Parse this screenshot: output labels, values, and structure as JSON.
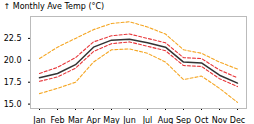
{
  "chart_data": {
    "type": "line",
    "ylabel": "Monthly Ave Temp (°C)",
    "categories": [
      "Jan",
      "Feb",
      "Mar",
      "Apr",
      "May",
      "Jun",
      "Jul",
      "Aug",
      "Sep",
      "Oct",
      "Nov",
      "Dec"
    ],
    "series": [
      {
        "color": "#f5a623",
        "line_style": "dashed",
        "values": [
          16.2,
          16.8,
          17.5,
          19.8,
          21.2,
          21.3,
          20.8,
          19.8,
          17.8,
          18.2,
          16.8,
          15.2
        ]
      },
      {
        "color": "#f5a623",
        "line_style": "dashed",
        "values": [
          20.2,
          21.5,
          22.5,
          23.5,
          24.2,
          24.4,
          23.8,
          23.0,
          21.2,
          20.8,
          19.8,
          19.0
        ]
      },
      {
        "color": "#e8363a",
        "line_style": "dashed",
        "values": [
          17.6,
          18.1,
          19.1,
          21.0,
          21.9,
          22.1,
          21.6,
          21.1,
          19.4,
          19.3,
          17.9,
          17.0
        ]
      },
      {
        "color": "#e8363a",
        "line_style": "dashed",
        "values": [
          18.5,
          19.2,
          20.3,
          22.1,
          22.8,
          23.0,
          22.5,
          22.0,
          20.3,
          20.2,
          18.9,
          18.0
        ]
      },
      {
        "color": "#333333",
        "line_style": "solid",
        "values": [
          18.0,
          18.5,
          19.5,
          21.5,
          22.3,
          22.4,
          22.0,
          21.5,
          19.8,
          19.7,
          18.3,
          17.4
        ]
      }
    ],
    "ylim": [
      14.5,
      25.0
    ],
    "yticks": [
      {
        "value": 15,
        "label": "15.0"
      },
      17.5,
      {
        "value": 20,
        "label": "20.0"
      },
      22.5
    ]
  }
}
